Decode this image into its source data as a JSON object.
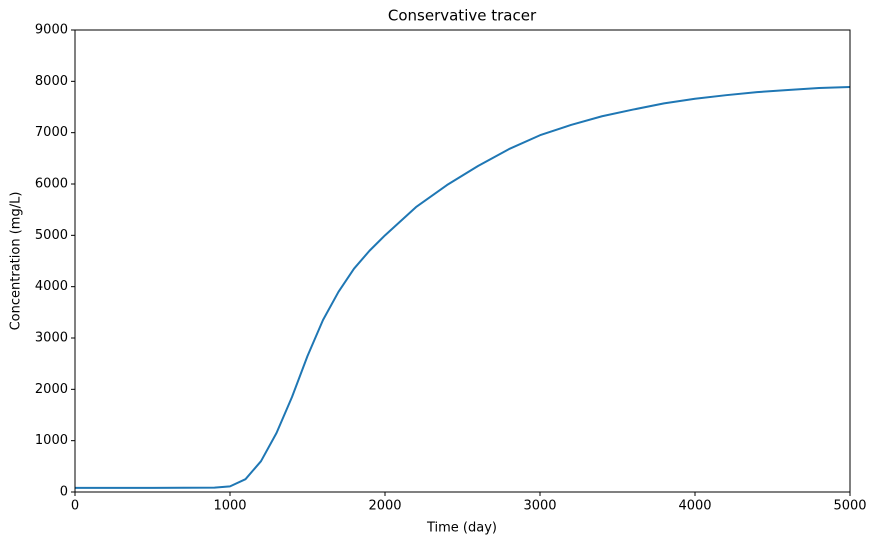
{
  "chart_data": {
    "type": "line",
    "title": "Conservative tracer",
    "x_label": "Time (day)",
    "y_label": "Concentration (mg/L)",
    "x": [
      0,
      500,
      900,
      1000,
      1100,
      1200,
      1300,
      1400,
      1500,
      1600,
      1700,
      1800,
      1900,
      2000,
      2200,
      2400,
      2600,
      2800,
      3000,
      3200,
      3400,
      3600,
      3800,
      4000,
      4200,
      4400,
      4600,
      4800,
      5000
    ],
    "series": [
      {
        "name": "Conservative tracer",
        "color": "#1f77b4",
        "values": [
          80,
          80,
          85,
          110,
          250,
          600,
          1150,
          1850,
          2650,
          3350,
          3900,
          4350,
          4700,
          5000,
          5550,
          5980,
          6350,
          6680,
          6950,
          7150,
          7320,
          7450,
          7570,
          7660,
          7730,
          7790,
          7830,
          7870,
          7890
        ]
      }
    ],
    "xlim": [
      0,
      5000
    ],
    "ylim": [
      0,
      9000
    ],
    "xticks": [
      0,
      1000,
      2000,
      3000,
      4000,
      5000
    ],
    "yticks": [
      0,
      1000,
      2000,
      3000,
      4000,
      5000,
      6000,
      7000,
      8000,
      9000
    ],
    "grid": false
  }
}
